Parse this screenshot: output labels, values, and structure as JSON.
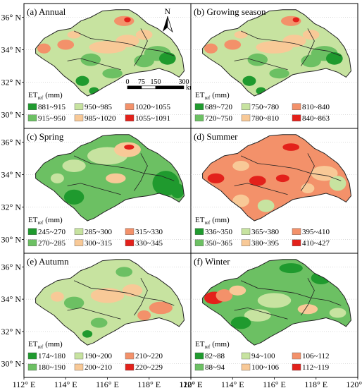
{
  "panels": [
    {
      "id": "a",
      "title": "(a) Annual",
      "fill": "#c7e3a0",
      "north": true,
      "scalebar": true,
      "legend_title": "ET",
      "legend_sub": "ref",
      "legend_unit": "(mm)",
      "classes": [
        {
          "label": "881~915",
          "color": "#1f9a2e"
        },
        {
          "label": "950~985",
          "color": "#c7e3a0"
        },
        {
          "label": "1020~1055",
          "color": "#f3916a"
        },
        {
          "label": "915~950",
          "color": "#6cc063"
        },
        {
          "label": "985~1020",
          "color": "#f8c997"
        },
        {
          "label": "1055~1091",
          "color": "#e3211b"
        }
      ]
    },
    {
      "id": "b",
      "title": "(b) Growing season",
      "fill": "#c7e3a0",
      "north": false,
      "scalebar": false,
      "legend_title": "ET",
      "legend_sub": "ref",
      "legend_unit": "(mm)",
      "classes": [
        {
          "label": "689~720",
          "color": "#1f9a2e"
        },
        {
          "label": "750~780",
          "color": "#c7e3a0"
        },
        {
          "label": "810~840",
          "color": "#f3916a"
        },
        {
          "label": "720~750",
          "color": "#6cc063"
        },
        {
          "label": "780~810",
          "color": "#f8c997"
        },
        {
          "label": "840~863",
          "color": "#e3211b"
        }
      ]
    },
    {
      "id": "c",
      "title": "(c) Spring",
      "fill": "#6cc063",
      "north": false,
      "scalebar": false,
      "legend_title": "ET",
      "legend_sub": "ref",
      "legend_unit": "(mm)",
      "classes": [
        {
          "label": "245~270",
          "color": "#1f9a2e"
        },
        {
          "label": "285~300",
          "color": "#c7e3a0"
        },
        {
          "label": "315~330",
          "color": "#f3916a"
        },
        {
          "label": "270~285",
          "color": "#6cc063"
        },
        {
          "label": "300~315",
          "color": "#f8c997"
        },
        {
          "label": "330~345",
          "color": "#e3211b"
        }
      ]
    },
    {
      "id": "d",
      "title": "(d) Summer",
      "fill": "#f3916a",
      "north": false,
      "scalebar": false,
      "legend_title": "ET",
      "legend_sub": "ref",
      "legend_unit": "(mm)",
      "classes": [
        {
          "label": "336~350",
          "color": "#1f9a2e"
        },
        {
          "label": "365~380",
          "color": "#c7e3a0"
        },
        {
          "label": "395~410",
          "color": "#f3916a"
        },
        {
          "label": "350~365",
          "color": "#6cc063"
        },
        {
          "label": "380~395",
          "color": "#f8c997"
        },
        {
          "label": "410~427",
          "color": "#e3211b"
        }
      ]
    },
    {
      "id": "e",
      "title": "(e) Autumn",
      "fill": "#c7e3a0",
      "north": false,
      "scalebar": false,
      "legend_title": "ET",
      "legend_sub": "ref",
      "legend_unit": "(mm)",
      "classes": [
        {
          "label": "174~180",
          "color": "#1f9a2e"
        },
        {
          "label": "190~200",
          "color": "#c7e3a0"
        },
        {
          "label": "210~220",
          "color": "#f3916a"
        },
        {
          "label": "180~190",
          "color": "#6cc063"
        },
        {
          "label": "200~210",
          "color": "#f8c997"
        },
        {
          "label": "220~229",
          "color": "#e3211b"
        }
      ]
    },
    {
      "id": "f",
      "title": "(f) Winter",
      "fill": "#6cc063",
      "north": false,
      "scalebar": false,
      "legend_title": "ET",
      "legend_sub": "ref",
      "legend_unit": "(mm)",
      "classes": [
        {
          "label": "82~88",
          "color": "#1f9a2e"
        },
        {
          "label": "94~100",
          "color": "#c7e3a0"
        },
        {
          "label": "106~112",
          "color": "#f3916a"
        },
        {
          "label": "88~94",
          "color": "#6cc063"
        },
        {
          "label": "100~106",
          "color": "#f8c997"
        },
        {
          "label": "112~119",
          "color": "#e3211b"
        }
      ]
    }
  ],
  "lat_ticks": [
    "36° N",
    "34° N",
    "32° N",
    "30° N"
  ],
  "lon_ticks": [
    "112° E",
    "114° E",
    "116° E",
    "118° E",
    "120° E"
  ],
  "north_label": "N",
  "scale": {
    "labels": [
      "0",
      "75",
      "150",
      "300"
    ],
    "unit": "km"
  }
}
